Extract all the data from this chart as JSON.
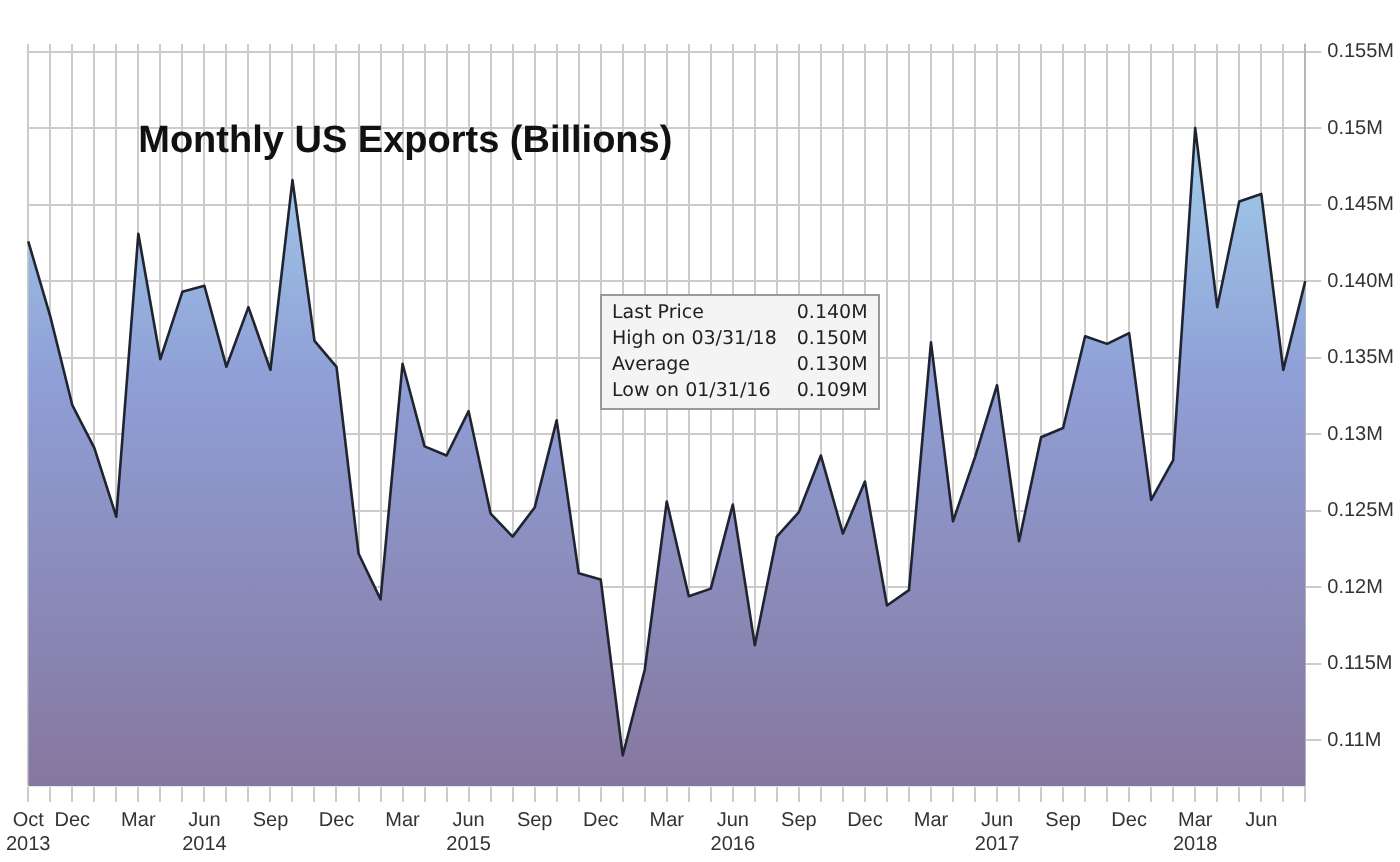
{
  "chart_data": {
    "type": "area",
    "title": "Monthly US Exports (Billions)",
    "categories": [
      "Oct 2013",
      null,
      "Dec",
      null,
      null,
      "Mar",
      null,
      null,
      "Jun 2014",
      null,
      null,
      "Sep",
      null,
      null,
      "Dec",
      null,
      null,
      "Mar",
      null,
      null,
      "Jun 2015",
      null,
      null,
      "Sep",
      null,
      null,
      "Dec",
      null,
      null,
      "Mar",
      null,
      null,
      "Jun 2016",
      null,
      null,
      "Sep",
      null,
      null,
      "Dec",
      null,
      null,
      "Mar",
      null,
      null,
      "Jun 2017",
      null,
      null,
      "Sep",
      null,
      null,
      "Dec",
      null,
      null,
      "Mar 2018",
      null,
      null,
      "Jun",
      null,
      null
    ],
    "series": [
      {
        "color": "#1f2430",
        "values": [
          0.1426,
          0.1377,
          0.1319,
          0.1291,
          0.1246,
          0.1431,
          0.1349,
          0.1393,
          0.1397,
          0.1344,
          0.1383,
          0.1342,
          0.1466,
          0.1361,
          0.1344,
          0.1222,
          0.1192,
          0.1346,
          0.1292,
          0.1286,
          0.1315,
          0.1248,
          0.1233,
          0.1252,
          0.1309,
          0.1209,
          0.1205,
          0.109,
          0.1146,
          0.1256,
          0.1194,
          0.1199,
          0.1254,
          0.1162,
          0.1233,
          0.1249,
          0.1286,
          0.1235,
          0.1269,
          0.1188,
          0.1198,
          0.136,
          0.1243,
          0.1285,
          0.1332,
          0.123,
          0.1298,
          0.1304,
          0.1364,
          0.1359,
          0.1366,
          0.1257,
          0.1283,
          0.15,
          0.1383,
          0.1452,
          0.1457,
          0.1342,
          0.14
        ]
      }
    ],
    "ylim": [
      0.107,
      0.1555
    ],
    "yticks": [
      {
        "value": 0.11,
        "label": "0.11M"
      },
      {
        "value": 0.115,
        "label": "0.115M"
      },
      {
        "value": 0.12,
        "label": "0.12M"
      },
      {
        "value": 0.125,
        "label": "0.125M"
      },
      {
        "value": 0.13,
        "label": "0.13M"
      },
      {
        "value": 0.135,
        "label": "0.135M"
      },
      {
        "value": 0.14,
        "label": "0.140M"
      },
      {
        "value": 0.145,
        "label": "0.145M"
      },
      {
        "value": 0.15,
        "label": "0.15M"
      },
      {
        "value": 0.155,
        "label": "0.155M"
      }
    ],
    "annotations": [
      "Last Price 0.140M",
      "High on 03/31/18 0.150M",
      "Average 0.130M",
      "Low on 01/31/16 0.109M"
    ],
    "grid": true
  }
}
